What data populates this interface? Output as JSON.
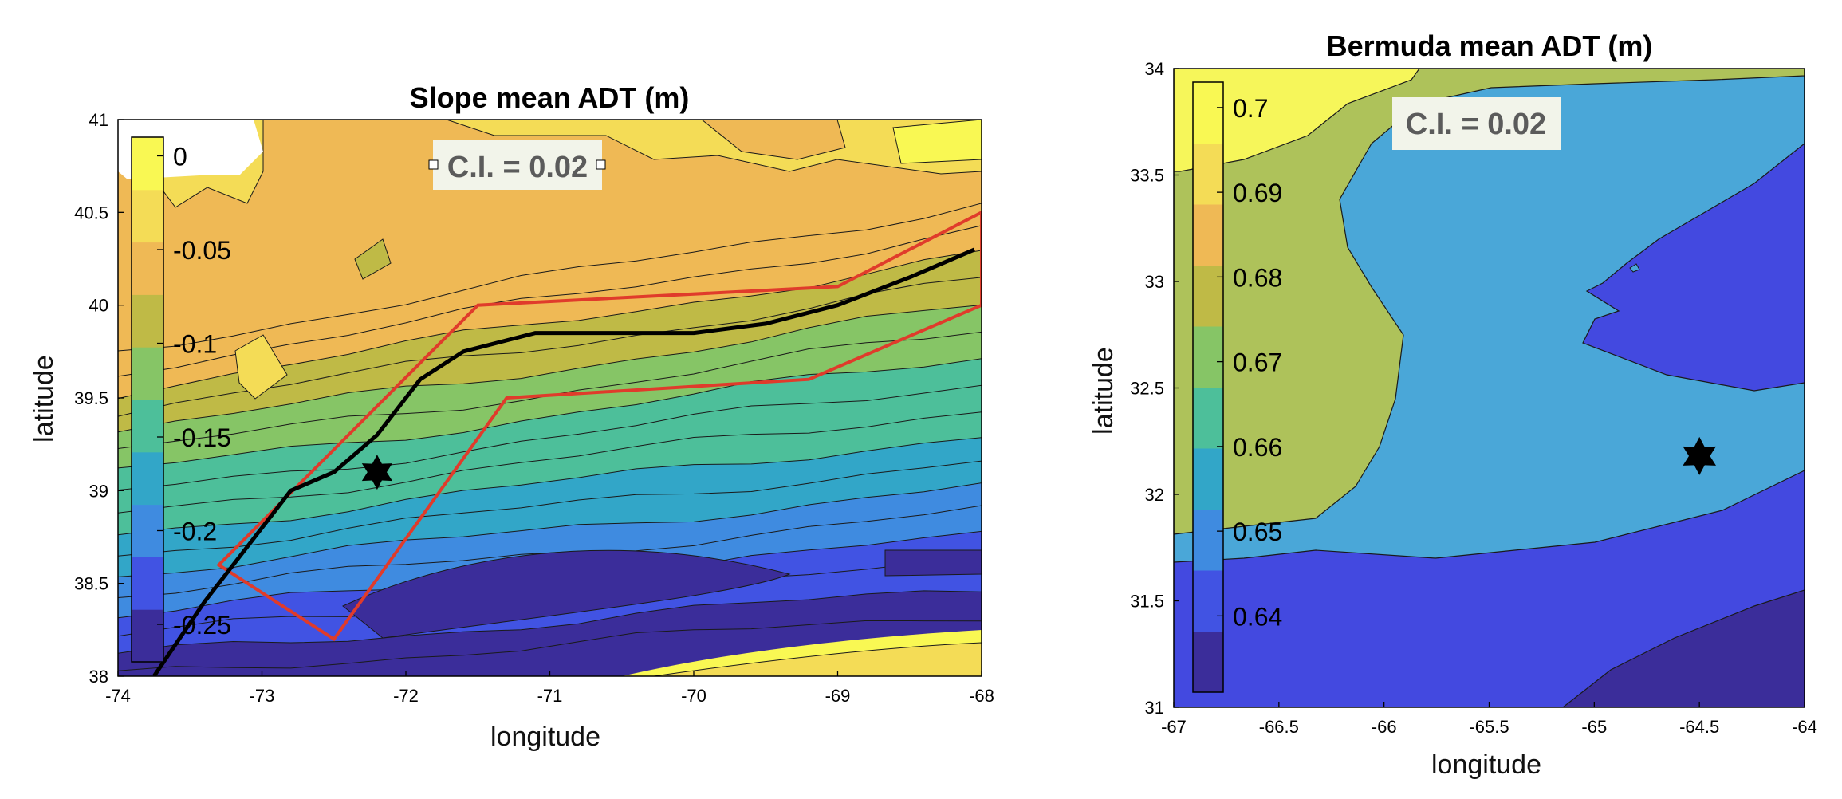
{
  "chart_data": [
    {
      "type": "contour",
      "title": "Slope mean ADT (m)",
      "xlabel": "longitude",
      "ylabel": "latitude",
      "xlim": [
        -74,
        -68
      ],
      "ylim": [
        38,
        41
      ],
      "xticks": [
        "-74",
        "-73",
        "-72",
        "-71",
        "-70",
        "-69",
        "-68"
      ],
      "yticks": [
        "38",
        "38.5",
        "39",
        "39.5",
        "40",
        "40.5",
        "41"
      ],
      "colorbar": {
        "ticks": [
          "0",
          "-0.05",
          "-0.1",
          "-0.15",
          "-0.2",
          "-0.25"
        ],
        "values": [
          0,
          -0.05,
          -0.1,
          -0.15,
          -0.2,
          -0.25
        ],
        "range": [
          -0.27,
          0.01
        ]
      },
      "annotation": "C.I. = 0.02",
      "colormap": [
        "#3b2d9a",
        "#4153e3",
        "#3f8be0",
        "#32a6c8",
        "#4dbf9a",
        "#86c566",
        "#bfba46",
        "#efb955",
        "#f4dc56",
        "#f9f853"
      ],
      "polygon_color": "#e03b2b",
      "polygon": [
        [
          -73.3,
          38.6
        ],
        [
          -71.5,
          40.0
        ],
        [
          -69.0,
          40.1
        ],
        [
          -68.0,
          40.5
        ],
        [
          -68.0,
          40.0
        ],
        [
          -69.2,
          39.6
        ],
        [
          -71.3,
          39.5
        ],
        [
          -72.5,
          38.2
        ]
      ],
      "line": [
        [
          -73.75,
          38.0
        ],
        [
          -73.4,
          38.4
        ],
        [
          -73.1,
          38.7
        ],
        [
          -72.8,
          39.0
        ],
        [
          -72.5,
          39.1
        ],
        [
          -72.2,
          39.3
        ],
        [
          -71.9,
          39.6
        ],
        [
          -71.6,
          39.75
        ],
        [
          -71.1,
          39.85
        ],
        [
          -70.5,
          39.85
        ],
        [
          -70.0,
          39.85
        ],
        [
          -69.5,
          39.9
        ],
        [
          -69.0,
          40.0
        ],
        [
          -68.5,
          40.15
        ],
        [
          -68.05,
          40.3
        ]
      ],
      "marker": [
        -72.2,
        39.1
      ]
    },
    {
      "type": "contour",
      "title": "Bermuda mean ADT (m)",
      "xlabel": "longitude",
      "ylabel": "latitude",
      "xlim": [
        -67,
        -64
      ],
      "ylim": [
        31,
        34
      ],
      "xticks": [
        "-67",
        "-66.5",
        "-66",
        "-65.5",
        "-65",
        "-64.5",
        "-64"
      ],
      "yticks": [
        "31",
        "31.5",
        "32",
        "32.5",
        "33",
        "33.5",
        "34"
      ],
      "colorbar": {
        "ticks": [
          "0.7",
          "0.69",
          "0.68",
          "0.67",
          "0.66",
          "0.65",
          "0.64"
        ],
        "values": [
          0.7,
          0.69,
          0.68,
          0.67,
          0.66,
          0.65,
          0.64
        ],
        "range": [
          0.631,
          0.703
        ]
      },
      "annotation": "C.I. = 0.02",
      "levels": {
        "dark": "#3b2d9a",
        "blue": "#4349e0",
        "cyan": "#4aa7d8",
        "green": "#aec25a",
        "yellow": "#f6f65a"
      },
      "marker": [
        -64.5,
        32.18
      ]
    }
  ]
}
